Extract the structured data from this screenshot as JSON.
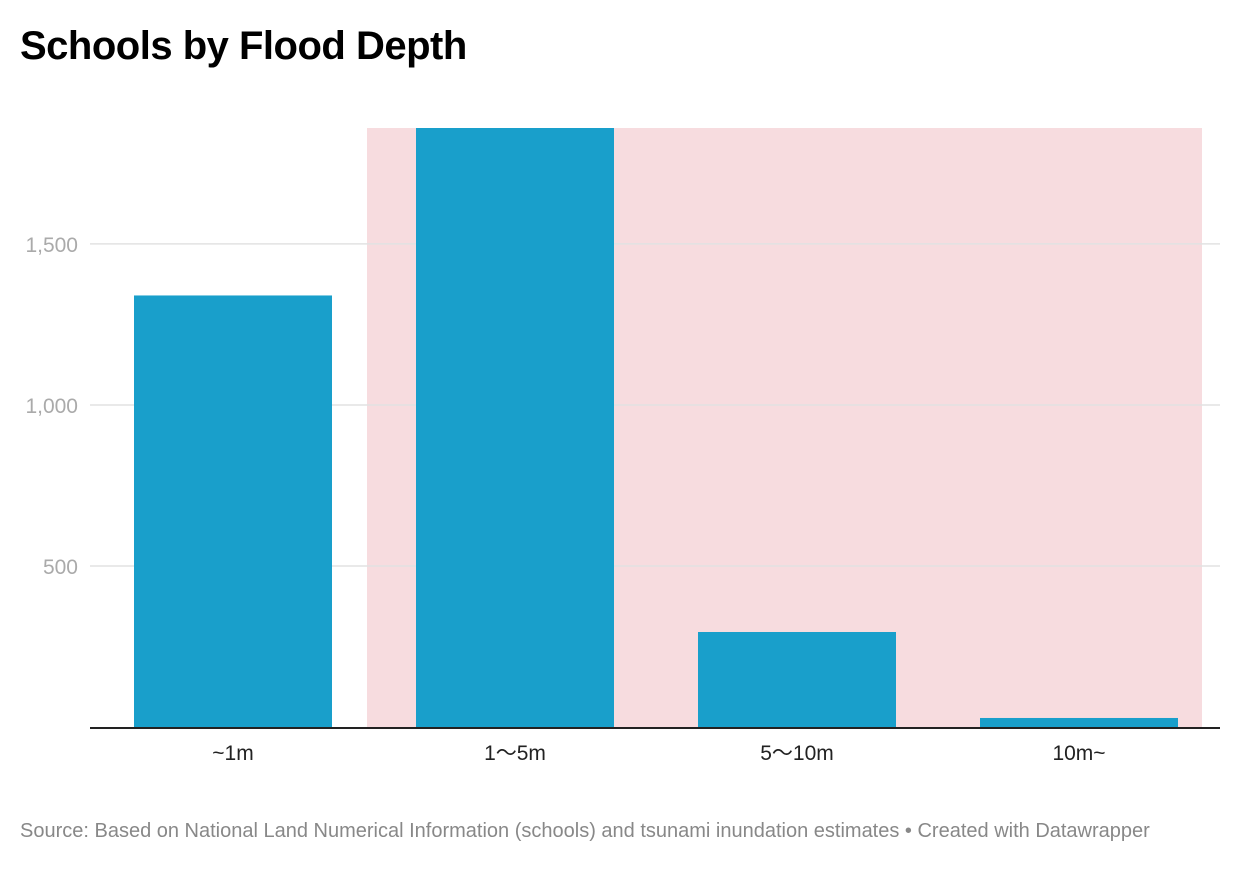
{
  "chart_data": {
    "type": "bar",
    "title": "Schools by Flood Depth",
    "categories": [
      "~1m",
      "1〜5m",
      "5〜10m",
      "10m~"
    ],
    "values": [
      1340,
      1860,
      295,
      28
    ],
    "ylim": [
      0,
      1860
    ],
    "yticks": [
      500,
      1000,
      1500
    ],
    "ytick_labels": [
      "500",
      "1,000",
      "1,500"
    ],
    "grid": true,
    "highlight_range": {
      "from_category": "1〜5m",
      "to_category": "10m~",
      "color": "#f7dcdf"
    },
    "bar_color": "#199fcb"
  },
  "footer": {
    "source": "Source: Based on National Land Numerical Information (schools) and tsunami inundation estimates • Created with Datawrapper"
  }
}
